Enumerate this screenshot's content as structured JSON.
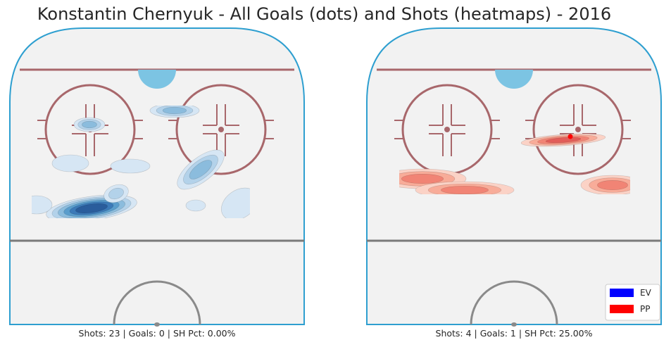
{
  "title": "Konstantin Chernyuk - All Goals (dots) and Shots (heatmaps) - 2016",
  "colors": {
    "ice": "#f2f2f2",
    "boards": "#2e9fd0",
    "goal_line": "#a8676b",
    "blue_line": "#7a7a7a",
    "crease": "#7cc4e3",
    "faceoff": "#a8676b",
    "ev": "#0000ff",
    "pp": "#ff0000"
  },
  "legend": [
    {
      "label": "EV",
      "color": "#0000ff"
    },
    {
      "label": "PP",
      "color": "#ff0000"
    }
  ],
  "chart_data": [
    {
      "type": "heatmap",
      "panel": "left",
      "strength": "EV",
      "colormap": "Blues",
      "caption": "Shots: 23 | Goals: 0 | SH Pct: 0.00%",
      "shots": 23,
      "goals": 0,
      "sh_pct": "0.00%",
      "goal_points": []
    },
    {
      "type": "heatmap",
      "panel": "right",
      "strength": "PP",
      "colormap": "Reds",
      "caption": "Shots: 4 | Goals: 1 | SH Pct: 25.00%",
      "shots": 4,
      "goals": 1,
      "sh_pct": "25.00%",
      "goal_points": [
        {
          "x": 20,
          "y": 69
        }
      ]
    }
  ]
}
